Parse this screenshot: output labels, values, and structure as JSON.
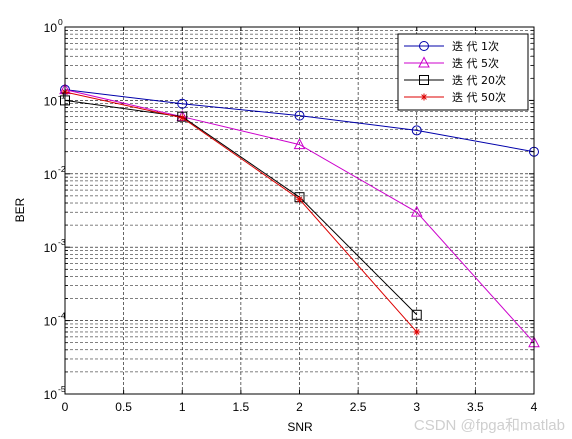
{
  "chart_data": {
    "type": "line",
    "xlabel": "SNR",
    "ylabel": "BER",
    "xlim": [
      0,
      4
    ],
    "ylim": [
      1e-05,
      1
    ],
    "yscale": "log",
    "grid": true,
    "grid_style": "dashed",
    "legend_position": "top-right",
    "x_ticks": [
      "0",
      "0.5",
      "1",
      "1.5",
      "2",
      "2.5",
      "3",
      "3.5",
      "4"
    ],
    "y_ticks": [
      {
        "base": "10",
        "exp": "0"
      },
      {
        "base": "10",
        "exp": "-1"
      },
      {
        "base": "10",
        "exp": "-2"
      },
      {
        "base": "10",
        "exp": "-3"
      },
      {
        "base": "10",
        "exp": "-4"
      },
      {
        "base": "10",
        "exp": "-5"
      }
    ],
    "series": [
      {
        "name": "迭 代 1次",
        "color": "#0000aa",
        "marker": "circle",
        "x": [
          0,
          1,
          2,
          3,
          4
        ],
        "y": [
          0.14,
          0.09,
          0.062,
          0.039,
          0.02
        ]
      },
      {
        "name": "迭 代 5次",
        "color": "#cc00cc",
        "marker": "triangle",
        "x": [
          0,
          1,
          2,
          3,
          4
        ],
        "y": [
          0.14,
          0.06,
          0.025,
          0.003,
          5e-05
        ]
      },
      {
        "name": "迭 代 20次",
        "color": "#000000",
        "marker": "square",
        "x": [
          0,
          1,
          2,
          3
        ],
        "y": [
          0.1,
          0.06,
          0.0048,
          0.00012
        ]
      },
      {
        "name": "迭 代 50次",
        "color": "#dd0000",
        "marker": "star",
        "x": [
          0,
          1,
          2,
          3
        ],
        "y": [
          0.13,
          0.058,
          0.0045,
          7e-05
        ]
      }
    ]
  },
  "watermark": "CSDN @fpga和matlab"
}
